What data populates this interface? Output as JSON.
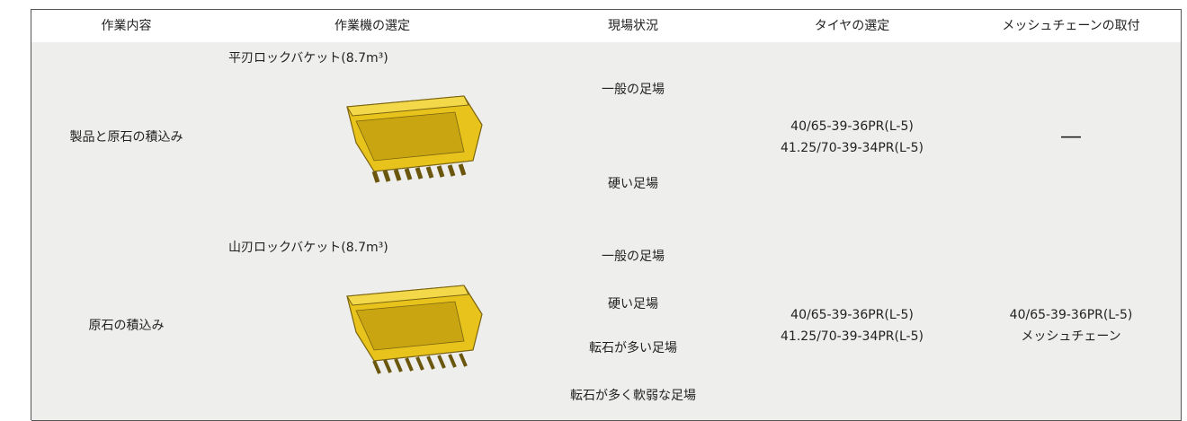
{
  "table": {
    "headers": [
      "作業内容",
      "作業機の選定",
      "現場状況",
      "タイヤの選定",
      "メッシュチェーンの取付"
    ],
    "rows": [
      {
        "work": "製品と原石の積込み",
        "machine": "平刃ロックバケット(8.7m³)",
        "conditions": [
          "一般の足場",
          "硬い足場"
        ],
        "tires": [
          "40/65-39-36PR(L-5)",
          "41.25/70-39-34PR(L-5)"
        ],
        "mesh": [
          "―"
        ]
      },
      {
        "work": "原石の積込み",
        "machine": "山刃ロックバケット(8.7m³)",
        "conditions": [
          "一般の足場",
          "硬い足場",
          "転石が多い足場",
          "転石が多く軟弱な足場"
        ],
        "tires": [
          "40/65-39-36PR(L-5)",
          "41.25/70-39-34PR(L-5)"
        ],
        "mesh": [
          "40/65-39-36PR(L-5)",
          "メッシュチェーン"
        ]
      }
    ]
  }
}
